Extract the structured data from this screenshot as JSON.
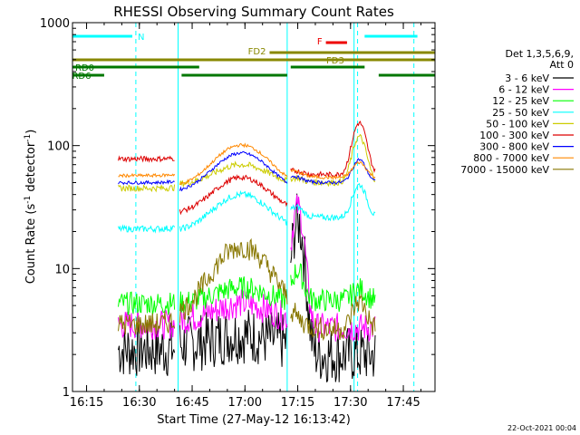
{
  "footer": {
    "timestamp": "22-Oct-2021 00:04"
  },
  "chart_data": {
    "type": "line",
    "title": "RHESSI Observing Summary Count Rates",
    "xlabel": "Start Time (27-May-12 16:13:42)",
    "ylabel_main": "Count Rate (s",
    "ylabel_sup": "-1",
    "ylabel_end": " detector",
    "ylabel_close": ")",
    "y_scale": "log",
    "ylim": [
      1,
      1000
    ],
    "xlim": [
      "16:11",
      "17:54"
    ],
    "grid": false,
    "x_ticks": [
      "16:15",
      "16:30",
      "16:45",
      "17:00",
      "17:15",
      "17:30",
      "17:45"
    ],
    "y_ticks": [
      "1",
      "10",
      "100",
      "1000"
    ],
    "legend_position": "right",
    "legend_header": [
      "Det 1,3,5,6,9,",
      "Att 0"
    ],
    "series": [
      {
        "name": "3 - 6 keV",
        "color": "#000000"
      },
      {
        "name": "6 - 12 keV",
        "color": "#ff00ff"
      },
      {
        "name": "12 - 25 keV",
        "color": "#00ff00"
      },
      {
        "name": "25 - 50 keV",
        "color": "#00ffff"
      },
      {
        "name": "50 - 100 keV",
        "color": "#cccc00"
      },
      {
        "name": "100 - 300 keV",
        "color": "#dd0000"
      },
      {
        "name": "300 - 800 keV",
        "color": "#0000ff"
      },
      {
        "name": "800 - 7000 keV",
        "color": "#ff8800"
      },
      {
        "name": "7000 - 15000 keV",
        "color": "#887700"
      }
    ],
    "night_intervals": [
      [
        "16:11",
        "16:29"
      ],
      [
        "17:32",
        "17:48"
      ]
    ],
    "saa_intervals": [
      [
        "16:41",
        "16:41"
      ],
      [
        "17:12",
        "17:12"
      ],
      [
        "17:31",
        "17:31"
      ]
    ],
    "flags": [
      {
        "label": "N",
        "color": "#00ffff",
        "segments": [
          [
            "16:11",
            "16:28"
          ],
          [
            "17:34",
            "17:49"
          ]
        ]
      },
      {
        "label": "F",
        "color": "#ee0000",
        "segments": [
          [
            "17:23",
            "17:29"
          ]
        ]
      },
      {
        "label": "FD2",
        "color": "#888800",
        "segments": [
          [
            "17:07",
            "17:54"
          ]
        ]
      },
      {
        "label": "FD3",
        "color": "#888800",
        "segments": [
          [
            "16:11",
            "17:54"
          ]
        ]
      },
      {
        "label": "RD0",
        "color": "#007700",
        "segments": [
          [
            "16:11",
            "16:47"
          ],
          [
            "17:13",
            "17:34"
          ]
        ]
      },
      {
        "label": "RD6",
        "color": "#007700",
        "segments": [
          [
            "16:11",
            "16:20"
          ],
          [
            "16:42",
            "17:12"
          ],
          [
            "17:38",
            "17:54"
          ]
        ]
      }
    ]
  }
}
